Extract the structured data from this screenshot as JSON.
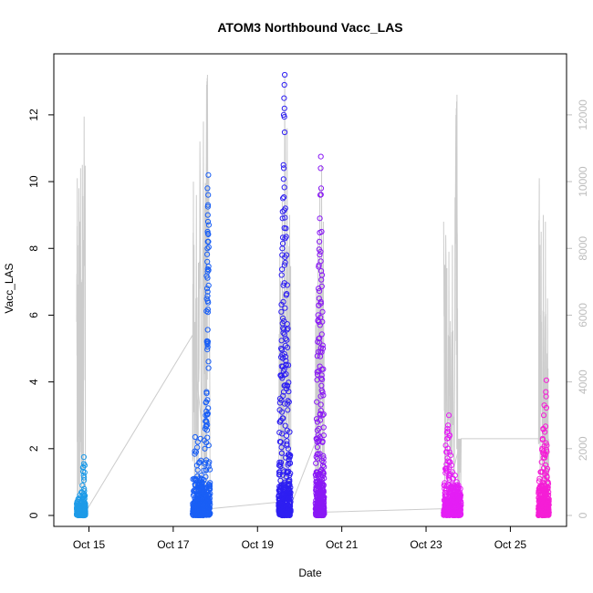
{
  "chart_data": {
    "type": "scatter",
    "title": "ATOM3 Northbound Vacc_LAS",
    "xlabel": "Date",
    "ylabel": "Vacc_LAS",
    "x_axis_type": "date",
    "xlim": [
      "2021-10-14T04:00",
      "2021-10-26T08:00"
    ],
    "ylim": [
      0,
      13.5
    ],
    "y2lim": [
      0,
      13500
    ],
    "x_ticks": [
      {
        "label": "Oct 15",
        "date": "2021-10-15"
      },
      {
        "label": "Oct 17",
        "date": "2021-10-17"
      },
      {
        "label": "Oct 19",
        "date": "2021-10-19"
      },
      {
        "label": "Oct 21",
        "date": "2021-10-21"
      },
      {
        "label": "Oct 23",
        "date": "2021-10-23"
      },
      {
        "label": "Oct 25",
        "date": "2021-10-25"
      }
    ],
    "y_ticks": [
      0,
      2,
      4,
      6,
      8,
      10,
      12
    ],
    "y2_ticks": [
      0,
      2000,
      4000,
      6000,
      8000,
      10000,
      12000
    ],
    "grid": false,
    "colors": {
      "background_line": "#cccccc",
      "right_axis": "#bdbdbd"
    },
    "series": [
      {
        "color": "#1e9be8",
        "x_start": "2021-10-14T17:00",
        "x_end": "2021-10-14T22:00",
        "points": [
          [
            0.05,
            0.2
          ],
          [
            0.1,
            0.35
          ],
          [
            0.15,
            0.1
          ],
          [
            0.2,
            0.5
          ],
          [
            0.25,
            0.3
          ],
          [
            0.3,
            0.15
          ],
          [
            0.35,
            0.6
          ],
          [
            0.4,
            0.25
          ],
          [
            0.45,
            0.4
          ],
          [
            0.5,
            0.1
          ],
          [
            0.55,
            0.7
          ],
          [
            0.6,
            0.3
          ],
          [
            0.65,
            0.9
          ],
          [
            0.7,
            0.2
          ],
          [
            0.75,
            1.45
          ],
          [
            0.8,
            1.2
          ],
          [
            0.82,
            1.75
          ],
          [
            0.85,
            0.8
          ],
          [
            0.9,
            0.5
          ],
          [
            0.95,
            0.25
          ],
          [
            0.92,
            1.5
          ],
          [
            0.87,
            0.05
          ],
          [
            0.98,
            0.35
          ],
          [
            0.6,
            0.02
          ]
        ],
        "base_max": 0.45,
        "line_trace": [
          [
            0.0,
            5.8
          ],
          [
            0.07,
            10.1
          ],
          [
            0.15,
            0.2
          ],
          [
            0.25,
            9.8
          ],
          [
            0.35,
            0.3
          ],
          [
            0.45,
            10.4
          ],
          [
            0.55,
            0.2
          ],
          [
            0.65,
            10.5
          ],
          [
            0.75,
            0.3
          ],
          [
            0.85,
            11.95
          ],
          [
            1.0,
            0.1
          ]
        ]
      },
      {
        "color": "#1a5ff5",
        "x_start": "2021-10-17T11:00",
        "x_end": "2021-10-17T21:00",
        "points": [
          [
            0.05,
            0.6
          ],
          [
            0.1,
            1.1
          ],
          [
            0.15,
            2.35
          ],
          [
            0.2,
            1.9
          ],
          [
            0.25,
            1.5
          ],
          [
            0.3,
            2.2
          ],
          [
            0.35,
            0.9
          ],
          [
            0.4,
            1.6
          ],
          [
            0.45,
            2.3
          ],
          [
            0.5,
            1.2
          ],
          [
            0.55,
            1.0
          ],
          [
            0.6,
            0.8
          ],
          [
            0.65,
            1.35
          ],
          [
            0.7,
            2.0
          ],
          [
            0.72,
            2.6
          ],
          [
            0.75,
            3.0
          ],
          [
            0.78,
            3.4
          ],
          [
            0.8,
            3.7
          ],
          [
            0.82,
            5.2
          ],
          [
            0.83,
            6.8
          ],
          [
            0.84,
            7.6
          ],
          [
            0.85,
            8.0
          ],
          [
            0.86,
            8.5
          ],
          [
            0.87,
            9.0
          ],
          [
            0.88,
            9.3
          ],
          [
            0.89,
            9.6
          ],
          [
            0.9,
            10.2
          ],
          [
            0.86,
            7.3
          ],
          [
            0.88,
            8.8
          ],
          [
            0.9,
            8.2
          ],
          [
            0.85,
            9.8
          ],
          [
            0.8,
            2.8
          ],
          [
            0.95,
            1.6
          ],
          [
            0.98,
            0.9
          ],
          [
            0.92,
            2.1
          ],
          [
            0.66,
            2.25
          ]
        ],
        "base_max": 1.2,
        "line_trace": [
          [
            0.0,
            5.4
          ],
          [
            0.05,
            10.0
          ],
          [
            0.12,
            0.3
          ],
          [
            0.22,
            9.6
          ],
          [
            0.32,
            0.4
          ],
          [
            0.42,
            11.2
          ],
          [
            0.52,
            0.3
          ],
          [
            0.62,
            11.8
          ],
          [
            0.72,
            0.5
          ],
          [
            0.8,
            12.9
          ],
          [
            0.85,
            13.2
          ],
          [
            1.0,
            0.2
          ]
        ]
      },
      {
        "color": "#2e1ff2",
        "x_start": "2021-10-19T12:00",
        "x_end": "2021-10-19T19:00",
        "points": [
          [
            0.05,
            1.5
          ],
          [
            0.1,
            2.8
          ],
          [
            0.12,
            3.5
          ],
          [
            0.15,
            4.2
          ],
          [
            0.2,
            5.0
          ],
          [
            0.22,
            6.1
          ],
          [
            0.25,
            7.2
          ],
          [
            0.3,
            8.0
          ],
          [
            0.32,
            8.9
          ],
          [
            0.35,
            9.5
          ],
          [
            0.4,
            10.5
          ],
          [
            0.42,
            12.0
          ],
          [
            0.45,
            12.5
          ],
          [
            0.47,
            12.9
          ],
          [
            0.5,
            13.2
          ],
          [
            0.55,
            9.2
          ],
          [
            0.6,
            8.6
          ],
          [
            0.65,
            7.8
          ],
          [
            0.7,
            6.9
          ],
          [
            0.75,
            5.6
          ],
          [
            0.8,
            4.5
          ],
          [
            0.85,
            3.4
          ],
          [
            0.9,
            2.5
          ],
          [
            0.95,
            1.8
          ],
          [
            0.18,
            2.2
          ],
          [
            0.28,
            3.1
          ],
          [
            0.38,
            6.4
          ],
          [
            0.48,
            7.5
          ],
          [
            0.58,
            5.3
          ],
          [
            0.68,
            3.9
          ],
          [
            0.78,
            2.0
          ],
          [
            0.88,
            1.2
          ],
          [
            0.33,
            9.1
          ],
          [
            0.43,
            10.4
          ],
          [
            0.53,
            8.3
          ],
          [
            0.63,
            6.6
          ]
        ],
        "base_max": 1.5,
        "line_trace": [
          [
            0.0,
            0.4
          ],
          [
            0.1,
            7.8
          ],
          [
            0.2,
            0.5
          ],
          [
            0.3,
            9.4
          ],
          [
            0.4,
            0.8
          ],
          [
            0.5,
            13.2
          ],
          [
            0.6,
            0.6
          ],
          [
            0.7,
            11.6
          ],
          [
            0.8,
            0.5
          ],
          [
            0.9,
            9.0
          ],
          [
            1.0,
            0.3
          ]
        ]
      },
      {
        "color": "#8a19f5",
        "x_start": "2021-10-20T09:00",
        "x_end": "2021-10-20T14:00",
        "points": [
          [
            0.05,
            1.2
          ],
          [
            0.1,
            2.3
          ],
          [
            0.15,
            3.4
          ],
          [
            0.2,
            4.3
          ],
          [
            0.25,
            5.2
          ],
          [
            0.3,
            6.0
          ],
          [
            0.35,
            6.8
          ],
          [
            0.4,
            7.5
          ],
          [
            0.45,
            8.2
          ],
          [
            0.5,
            8.9
          ],
          [
            0.55,
            9.6
          ],
          [
            0.6,
            10.4
          ],
          [
            0.62,
            10.75
          ],
          [
            0.65,
            9.8
          ],
          [
            0.7,
            8.5
          ],
          [
            0.75,
            7.2
          ],
          [
            0.8,
            6.1
          ],
          [
            0.85,
            5.0
          ],
          [
            0.9,
            3.6
          ],
          [
            0.95,
            2.4
          ],
          [
            0.22,
            2.8
          ],
          [
            0.32,
            4.9
          ],
          [
            0.42,
            6.5
          ],
          [
            0.52,
            5.7
          ],
          [
            0.72,
            4.2
          ],
          [
            0.82,
            3.0
          ],
          [
            0.92,
            1.6
          ],
          [
            0.58,
            7.9
          ]
        ],
        "base_max": 1.6,
        "line_trace": [
          [
            0.0,
            0.5
          ],
          [
            0.1,
            6.8
          ],
          [
            0.2,
            0.6
          ],
          [
            0.3,
            8.3
          ],
          [
            0.4,
            0.7
          ],
          [
            0.5,
            9.8
          ],
          [
            0.6,
            0.8
          ],
          [
            0.7,
            10.5
          ],
          [
            0.8,
            0.5
          ],
          [
            0.9,
            8.8
          ],
          [
            1.0,
            0.4
          ]
        ]
      },
      {
        "color": "#e41ef5",
        "x_start": "2021-10-23T10:00",
        "x_end": "2021-10-23T20:00",
        "points": [
          [
            0.05,
            0.9
          ],
          [
            0.1,
            1.4
          ],
          [
            0.15,
            1.9
          ],
          [
            0.2,
            2.3
          ],
          [
            0.25,
            2.7
          ],
          [
            0.3,
            3.0
          ],
          [
            0.35,
            2.4
          ],
          [
            0.4,
            1.8
          ],
          [
            0.45,
            1.5
          ],
          [
            0.5,
            1.3
          ],
          [
            0.55,
            1.1
          ],
          [
            0.6,
            0.9
          ],
          [
            0.65,
            1.2
          ],
          [
            0.7,
            0.8
          ],
          [
            0.75,
            1.0
          ],
          [
            0.8,
            0.7
          ],
          [
            0.85,
            0.9
          ],
          [
            0.9,
            0.6
          ],
          [
            0.95,
            0.8
          ],
          [
            0.12,
            2.1
          ],
          [
            0.22,
            2.6
          ],
          [
            0.32,
            1.6
          ]
        ],
        "base_max": 1.1,
        "line_trace": [
          [
            0.0,
            8.8
          ],
          [
            0.06,
            0.3
          ],
          [
            0.12,
            8.4
          ],
          [
            0.2,
            0.4
          ],
          [
            0.3,
            7.9
          ],
          [
            0.4,
            0.3
          ],
          [
            0.5,
            8.1
          ],
          [
            0.6,
            0.4
          ],
          [
            0.7,
            12.0
          ],
          [
            0.76,
            12.6
          ],
          [
            0.8,
            0.3
          ],
          [
            0.85,
            2.3
          ],
          [
            1.0,
            2.3
          ]
        ]
      },
      {
        "color": "#f51ed6",
        "x_start": "2021-10-25T16:00",
        "x_end": "2021-10-25T22:00",
        "points": [
          [
            0.05,
            0.8
          ],
          [
            0.1,
            1.1
          ],
          [
            0.15,
            0.6
          ],
          [
            0.2,
            1.3
          ],
          [
            0.25,
            0.9
          ],
          [
            0.3,
            1.6
          ],
          [
            0.35,
            2.0
          ],
          [
            0.4,
            2.3
          ],
          [
            0.45,
            2.6
          ],
          [
            0.5,
            3.0
          ],
          [
            0.55,
            3.3
          ],
          [
            0.6,
            2.5
          ],
          [
            0.65,
            1.8
          ],
          [
            0.7,
            3.7
          ],
          [
            0.75,
            4.05
          ],
          [
            0.8,
            2.1
          ],
          [
            0.85,
            1.4
          ],
          [
            0.9,
            1.0
          ],
          [
            0.95,
            0.7
          ]
        ],
        "base_max": 1.0,
        "line_trace": [
          [
            0.0,
            2.3
          ],
          [
            0.08,
            10.1
          ],
          [
            0.16,
            0.3
          ],
          [
            0.26,
            8.5
          ],
          [
            0.36,
            0.4
          ],
          [
            0.46,
            9.0
          ],
          [
            0.56,
            0.3
          ],
          [
            0.66,
            8.8
          ],
          [
            0.76,
            0.5
          ],
          [
            0.86,
            6.5
          ],
          [
            1.0,
            0.2
          ]
        ]
      }
    ],
    "connector_trace": [
      [
        "2021-10-14T22:00",
        0.1
      ],
      [
        "2021-10-17T11:00",
        5.4
      ],
      [
        "2021-10-17T21:00",
        0.2
      ],
      [
        "2021-10-19T12:00",
        0.4
      ],
      [
        "2021-10-19T19:00",
        0.3
      ],
      [
        "2021-10-20T09:00",
        2.2
      ],
      [
        "2021-10-20T14:00",
        0.1
      ],
      [
        "2021-10-23T10:00",
        0.2
      ],
      [
        "2021-10-23T20:00",
        2.3
      ],
      [
        "2021-10-25T16:00",
        2.3
      ]
    ]
  }
}
